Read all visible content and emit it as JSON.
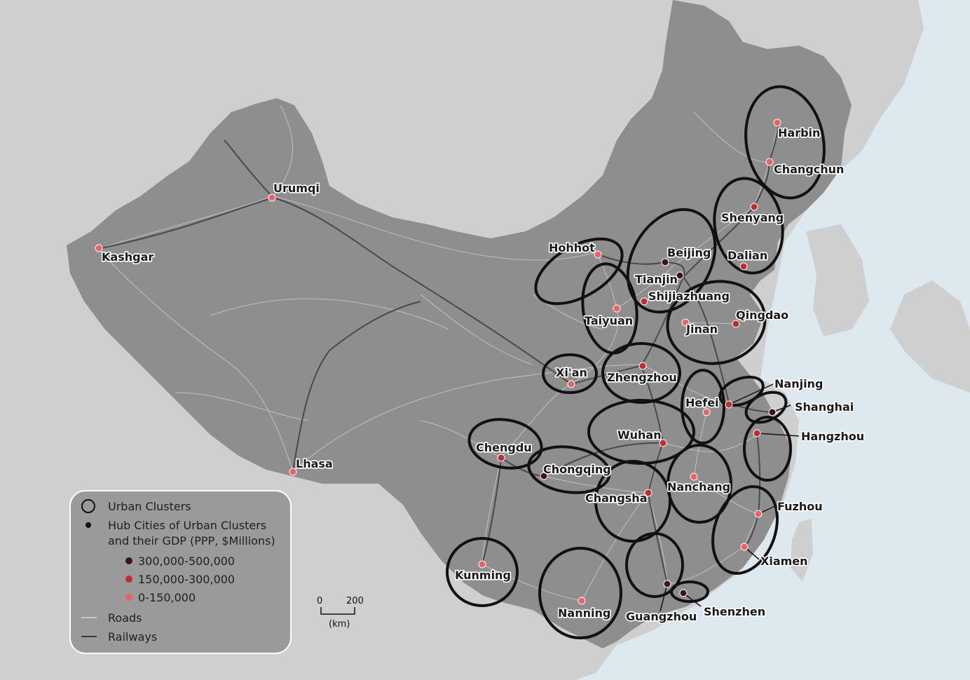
{
  "colors": {
    "sea": "#dde9ee",
    "neighbor_land": "#cfcfcf",
    "china_land": "#8e8e8e",
    "road": "#c9c9c9",
    "railway": "#4a4a4a",
    "cluster_outline": "#111111",
    "gdp_high": "#3d1518",
    "gdp_mid": "#c62a2f",
    "gdp_low": "#ee6063",
    "legend_bg": "#9a9a9a"
  },
  "legend": {
    "urban_clusters": "Urban Clusters",
    "hub_cities_line1": "Hub Cities of Urban Clusters",
    "hub_cities_line2": "and their GDP (PPP, $Millions)",
    "gdp_high": "300,000-500,000",
    "gdp_mid": "150,000-300,000",
    "gdp_low": "0-150,000",
    "roads": "Roads",
    "railways": "Railways"
  },
  "scale_bar": {
    "start": "0",
    "end": "200",
    "unit": "(km)"
  },
  "cities": [
    {
      "name": "Harbin",
      "gdp": "low"
    },
    {
      "name": "Changchun",
      "gdp": "low"
    },
    {
      "name": "Shenyang",
      "gdp": "mid"
    },
    {
      "name": "Dalian",
      "gdp": "mid"
    },
    {
      "name": "Beijing",
      "gdp": "high"
    },
    {
      "name": "Tianjin",
      "gdp": "high"
    },
    {
      "name": "Shijiazhuang",
      "gdp": "mid"
    },
    {
      "name": "Hohhot",
      "gdp": "low"
    },
    {
      "name": "Taiyuan",
      "gdp": "low"
    },
    {
      "name": "Jinan",
      "gdp": "low"
    },
    {
      "name": "Qingdao",
      "gdp": "mid"
    },
    {
      "name": "Zhengzhou",
      "gdp": "mid"
    },
    {
      "name": "Xi'an",
      "gdp": "low"
    },
    {
      "name": "Nanjing",
      "gdp": "mid"
    },
    {
      "name": "Shanghai",
      "gdp": "high"
    },
    {
      "name": "Hefei",
      "gdp": "low"
    },
    {
      "name": "Hangzhou",
      "gdp": "mid"
    },
    {
      "name": "Wuhan",
      "gdp": "mid"
    },
    {
      "name": "Chengdu",
      "gdp": "mid"
    },
    {
      "name": "Chongqing",
      "gdp": "high"
    },
    {
      "name": "Changsha",
      "gdp": "mid"
    },
    {
      "name": "Nanchang",
      "gdp": "low"
    },
    {
      "name": "Fuzhou",
      "gdp": "low"
    },
    {
      "name": "Xiamen",
      "gdp": "low"
    },
    {
      "name": "Kunming",
      "gdp": "low"
    },
    {
      "name": "Nanning",
      "gdp": "low"
    },
    {
      "name": "Guangzhou",
      "gdp": "high"
    },
    {
      "name": "Shenzhen",
      "gdp": "high"
    },
    {
      "name": "Urumqi",
      "gdp": "low"
    },
    {
      "name": "Kashgar",
      "gdp": "low"
    },
    {
      "name": "Lhasa",
      "gdp": "low"
    }
  ]
}
